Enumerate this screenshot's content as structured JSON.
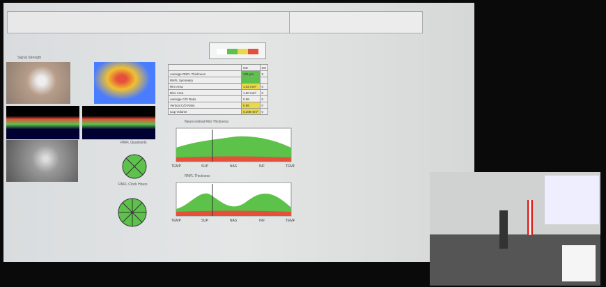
{
  "table": {
    "headers": [
      "OD",
      "OS"
    ],
    "rows": [
      [
        "Average RNFL Thickness",
        "105 µm",
        "9"
      ],
      [
        "RNFL Symmetry",
        "",
        ""
      ],
      [
        "Rim Area",
        "1.02 mm²",
        "0"
      ],
      [
        "Disc Area",
        "1.90 mm²",
        "0"
      ],
      [
        "Average C/D Ratio",
        "0.58",
        "0"
      ],
      [
        "Vertical C/D Ratio",
        "0.56",
        "0"
      ],
      [
        "Cup Volume",
        "0.208 mm³",
        "0"
      ]
    ]
  },
  "charts": [
    {
      "title": "Neuro-retinal Rim Thickness",
      "axis": [
        "TEMP",
        "SUP",
        "NAS",
        "INF",
        "TEMP"
      ]
    },
    {
      "title": "RNFL Thickness",
      "axis": [
        "TEMP",
        "SUP",
        "NAS",
        "INF",
        "TEMP"
      ]
    }
  ],
  "panels": {
    "signal": "Signal Strength",
    "quadrants": "RNFL Quadrants",
    "clock": "RNFL Clock Hours"
  }
}
